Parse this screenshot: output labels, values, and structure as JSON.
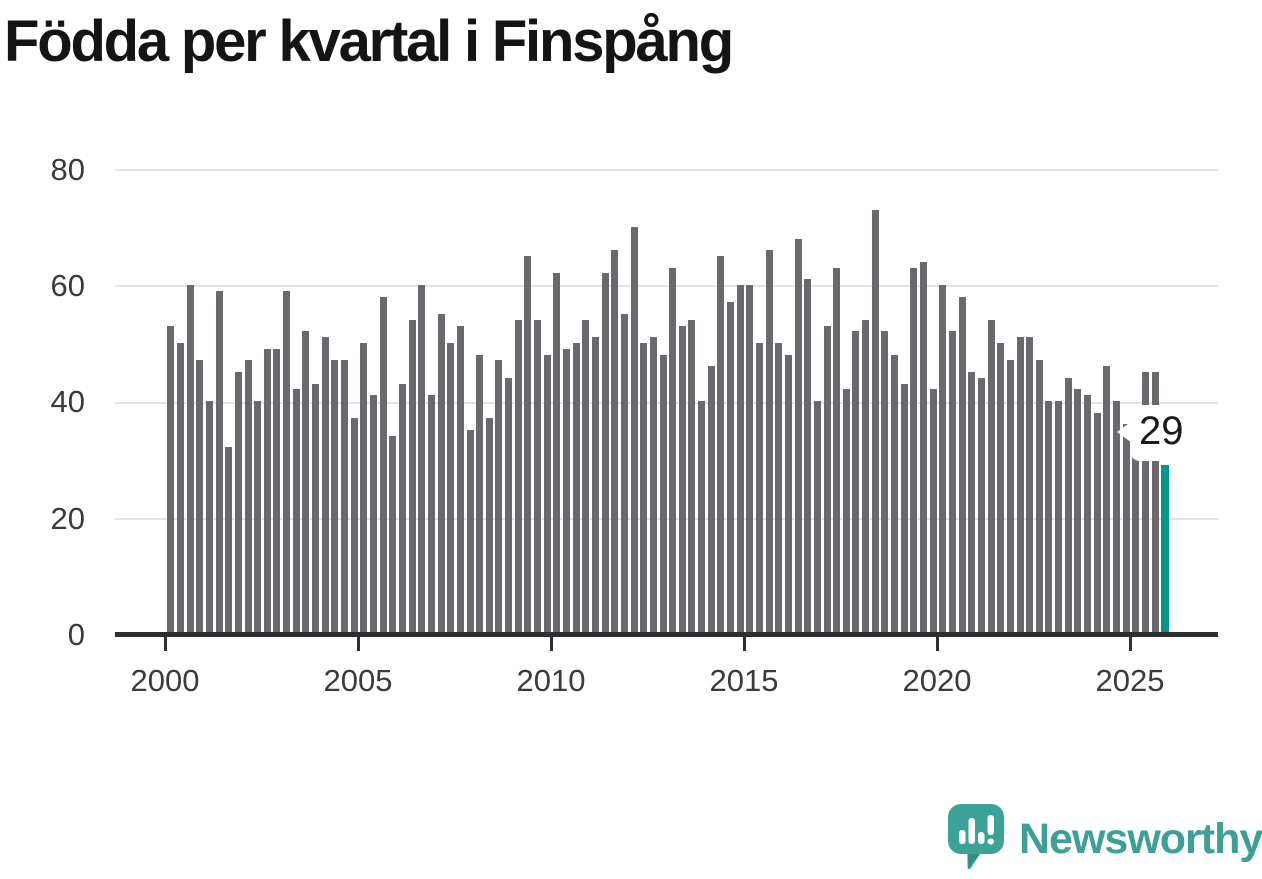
{
  "title": "Födda per kvartal i Finspång",
  "annotation": {
    "value_label": "29"
  },
  "branding": {
    "name": "Newsworthy"
  },
  "colors": {
    "bar": "#69696e",
    "highlight": "#009791",
    "grid": "#e4e4e4",
    "axis": "#2f2f2f",
    "tick_text": "#3b3b3b",
    "title_text": "#141414",
    "logo": "#3ba396",
    "logo_tail": "#2f8f82",
    "annotation_bg": "#ffffff",
    "annotation_text": "#1b1b1b"
  },
  "chart_data": {
    "type": "bar",
    "title": "Födda per kvartal i Finspång",
    "grid": "horizontal",
    "legend": "none",
    "ylim": [
      0,
      80
    ],
    "y_ticks": [
      0,
      20,
      40,
      60,
      80
    ],
    "y_tick_labels": [
      "0",
      "20",
      "40",
      "60",
      "80"
    ],
    "x_tick_labels": [
      "2000",
      "2005",
      "2010",
      "2015",
      "2020",
      "2025"
    ],
    "highlight_index": 103,
    "highlight_value": 29,
    "categories": [
      "2000 Q1",
      "2000 Q2",
      "2000 Q3",
      "2000 Q4",
      "2001 Q1",
      "2001 Q2",
      "2001 Q3",
      "2001 Q4",
      "2002 Q1",
      "2002 Q2",
      "2002 Q3",
      "2002 Q4",
      "2003 Q1",
      "2003 Q2",
      "2003 Q3",
      "2003 Q4",
      "2004 Q1",
      "2004 Q2",
      "2004 Q3",
      "2004 Q4",
      "2005 Q1",
      "2005 Q2",
      "2005 Q3",
      "2005 Q4",
      "2006 Q1",
      "2006 Q2",
      "2006 Q3",
      "2006 Q4",
      "2007 Q1",
      "2007 Q2",
      "2007 Q3",
      "2007 Q4",
      "2008 Q1",
      "2008 Q2",
      "2008 Q3",
      "2008 Q4",
      "2009 Q1",
      "2009 Q2",
      "2009 Q3",
      "2009 Q4",
      "2010 Q1",
      "2010 Q2",
      "2010 Q3",
      "2010 Q4",
      "2011 Q1",
      "2011 Q2",
      "2011 Q3",
      "2011 Q4",
      "2012 Q1",
      "2012 Q2",
      "2012 Q3",
      "2012 Q4",
      "2013 Q1",
      "2013 Q2",
      "2013 Q3",
      "2013 Q4",
      "2014 Q1",
      "2014 Q2",
      "2014 Q3",
      "2014 Q4",
      "2015 Q1",
      "2015 Q2",
      "2015 Q3",
      "2015 Q4",
      "2016 Q1",
      "2016 Q2",
      "2016 Q3",
      "2016 Q4",
      "2017 Q1",
      "2017 Q2",
      "2017 Q3",
      "2017 Q4",
      "2018 Q1",
      "2018 Q2",
      "2018 Q3",
      "2018 Q4",
      "2019 Q1",
      "2019 Q2",
      "2019 Q3",
      "2019 Q4",
      "2020 Q1",
      "2020 Q2",
      "2020 Q3",
      "2020 Q4",
      "2021 Q1",
      "2021 Q2",
      "2021 Q3",
      "2021 Q4",
      "2022 Q1",
      "2022 Q2",
      "2022 Q3",
      "2022 Q4",
      "2023 Q1",
      "2023 Q2",
      "2023 Q3",
      "2023 Q4",
      "2024 Q1",
      "2024 Q2",
      "2024 Q3",
      "2024 Q4",
      "2025 Q1",
      "2025 Q2",
      "2025 Q3",
      "2025 Q4"
    ],
    "series": [
      {
        "name": "Födda",
        "values": [
          53,
          50,
          60,
          47,
          40,
          59,
          32,
          45,
          47,
          40,
          49,
          49,
          59,
          42,
          52,
          43,
          51,
          47,
          47,
          37,
          50,
          41,
          58,
          34,
          43,
          54,
          60,
          41,
          55,
          50,
          53,
          35,
          48,
          37,
          47,
          44,
          54,
          65,
          54,
          48,
          62,
          49,
          50,
          54,
          51,
          62,
          66,
          55,
          70,
          50,
          51,
          48,
          63,
          53,
          54,
          40,
          46,
          65,
          57,
          60,
          60,
          50,
          66,
          50,
          48,
          68,
          61,
          40,
          53,
          63,
          42,
          52,
          54,
          73,
          52,
          48,
          43,
          63,
          64,
          42,
          60,
          52,
          58,
          45,
          44,
          54,
          50,
          47,
          51,
          51,
          47,
          40,
          40,
          44,
          42,
          41,
          38,
          46,
          40,
          36,
          34,
          45,
          45,
          29
        ]
      }
    ]
  }
}
